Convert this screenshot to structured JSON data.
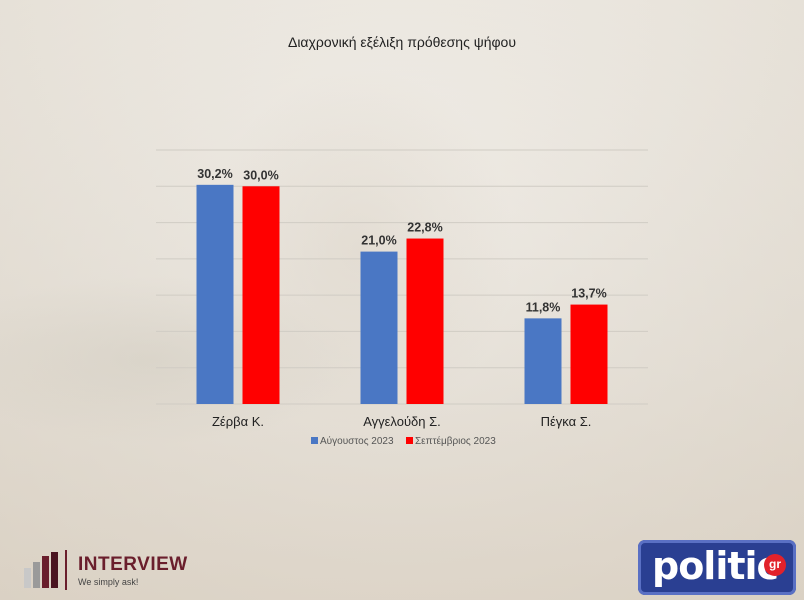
{
  "colors": {
    "series_1": "#4a77c4",
    "series_2": "#ff0000",
    "gridline": "#d0ccc4"
  },
  "chart_data": {
    "type": "bar",
    "title": "Διαχρονική εξέλιξη πρόθεσης ψήφου",
    "categories": [
      "Ζέρβα Κ.",
      "Αγγελούδη Σ.",
      "Πέγκα Σ."
    ],
    "series": [
      {
        "name": "Αύγουστος 2023",
        "values": [
          30.2,
          21.0,
          11.8
        ],
        "labels": [
          "30,2%",
          "21,0%",
          "11,8%"
        ]
      },
      {
        "name": "Σεπτέμβριος 2023",
        "values": [
          30.0,
          22.8,
          13.7
        ],
        "labels": [
          "30,0%",
          "22,8%",
          "13,7%"
        ]
      }
    ],
    "ylim": [
      0,
      35
    ],
    "grid": true,
    "legend_position": "bottom"
  },
  "logos": {
    "interview": {
      "name": "INTERVIEW",
      "tagline": "We simply ask!"
    },
    "politic": {
      "name": "politic",
      "suffix": "gr"
    }
  }
}
